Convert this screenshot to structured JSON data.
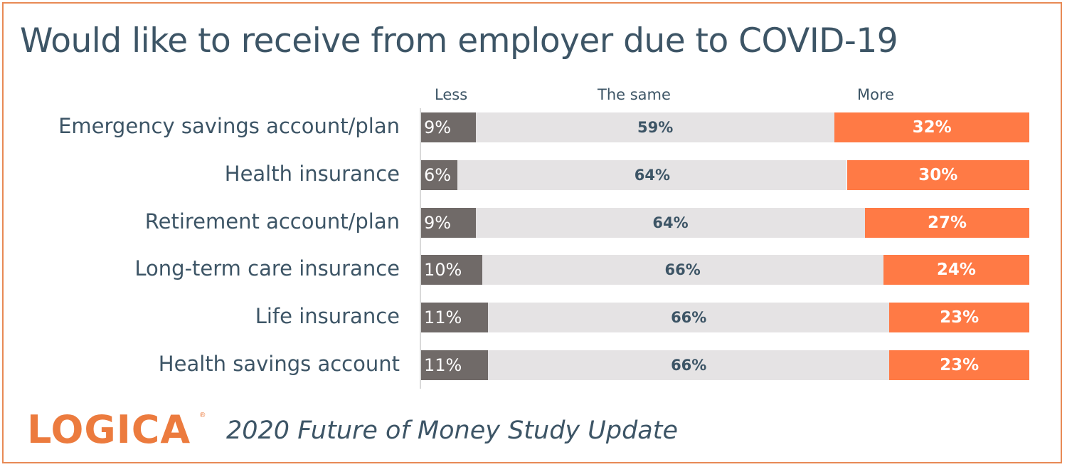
{
  "chart_data": {
    "type": "bar",
    "stacked": true,
    "orientation": "horizontal",
    "title": "Would like to receive from employer due to COVID-19",
    "categories": [
      "Emergency savings account/plan",
      "Health insurance",
      "Retirement account/plan",
      "Long-term care insurance",
      "Life insurance",
      "Health savings account"
    ],
    "series": [
      {
        "name": "Less",
        "values": [
          9,
          6,
          9,
          10,
          11,
          11
        ],
        "labels": [
          "9%",
          "6%",
          "9%",
          "10%",
          "11%",
          "11%"
        ],
        "color": "#706a68"
      },
      {
        "name": "The same",
        "values": [
          59,
          64,
          64,
          66,
          66,
          66
        ],
        "labels": [
          "59%",
          "64%",
          "64%",
          "66%",
          "66%",
          "66%"
        ],
        "color": "#e5e3e4"
      },
      {
        "name": "More",
        "values": [
          32,
          30,
          27,
          24,
          23,
          23
        ],
        "labels": [
          "32%",
          "30%",
          "27%",
          "24%",
          "23%",
          "23%"
        ],
        "color": "#ff7a45"
      }
    ],
    "xlim": [
      0,
      100
    ],
    "grid": false,
    "legend": "top"
  },
  "branding": {
    "logo_text": "LOGICA",
    "logo_registered": "®",
    "study_title": "2020 Future of Money Study Update"
  },
  "colors": {
    "text": "#3d5566",
    "accent": "#ec7b3e",
    "border": "#e88a55"
  }
}
